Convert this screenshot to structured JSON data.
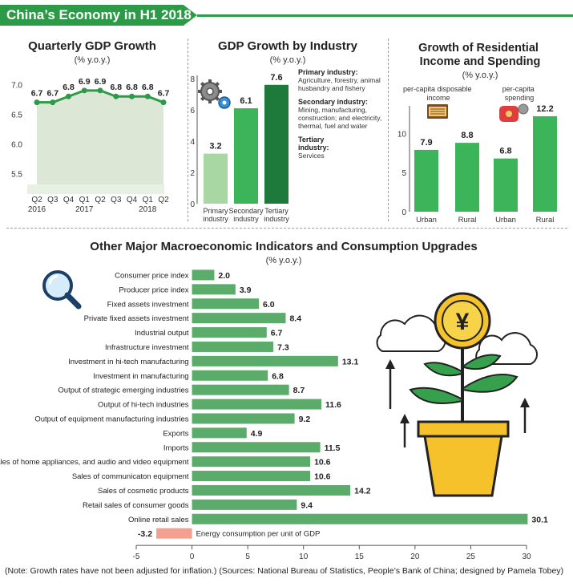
{
  "banner": {
    "title": "China’s Economy in H1 2018"
  },
  "note": {
    "text": "(Note: Growth rates have not been adjusted for inflation.)  (Sources: National Bureau of Statistics, People’s Bank of China; designed by Pamela Tobey)"
  },
  "colors": {
    "green": "#2c9a47",
    "light_green": "#a9d7a4",
    "mid_green": "#3cb55a",
    "dark_green": "#1e7a3a",
    "area_fill": "#dde7d6",
    "bar_green": "#5bab6a",
    "energy_bar": "#f4a08e"
  },
  "icons": {
    "gears": "gears-icon",
    "magnifier": "magnifier-icon",
    "cash": "cash-icon",
    "wallet": "wallet-icon",
    "plant": "money-plant-icon"
  },
  "chart_data": [
    {
      "type": "line",
      "title": "Quarterly GDP Growth",
      "subtitle": "(% y.o.y.)",
      "categories": [
        "Q2",
        "Q3",
        "Q4",
        "Q1",
        "Q2",
        "Q3",
        "Q4",
        "Q1",
        "Q2"
      ],
      "year_labels": [
        "2016",
        "2017",
        "2018"
      ],
      "values": [
        6.7,
        6.7,
        6.8,
        6.9,
        6.9,
        6.8,
        6.8,
        6.8,
        6.7
      ],
      "yticks": [
        "5.5",
        "6.0",
        "6.5",
        "7.0"
      ],
      "ylim": [
        5.4,
        7.1
      ]
    },
    {
      "type": "bar",
      "title": "GDP Growth by Industry",
      "subtitle": "(% y.o.y.)",
      "categories": [
        "Primary industry",
        "Secondary industry",
        "Tertiary industry"
      ],
      "values": [
        3.2,
        6.1,
        7.6
      ],
      "yticks": [
        "0",
        "2",
        "4",
        "6",
        "8"
      ],
      "ylim": [
        0,
        8
      ],
      "legend": [
        {
          "name": "Primary industry:",
          "desc": "Agriculture, forestry, animal husbandry and fishery"
        },
        {
          "name": "Secondary industry:",
          "desc": "Mining, manufacturing, construction; and electricity, thermal, fuel and water"
        },
        {
          "name": "Tertiary industry:",
          "desc": "Services"
        }
      ]
    },
    {
      "type": "bar",
      "title": "Growth of Residential Income and Spending",
      "subtitle": "(% y.o.y.)",
      "groups": [
        "per-capita disposable income",
        "per-capita spending"
      ],
      "categories": [
        "Urban",
        "Rural",
        "Urban",
        "Rural"
      ],
      "values": [
        7.9,
        8.8,
        6.8,
        12.2
      ],
      "yticks": [
        "0",
        "5",
        "10"
      ],
      "ylim": [
        0,
        12.5
      ]
    },
    {
      "type": "bar",
      "orientation": "horizontal",
      "title": "Other Major Macroeconomic Indicators and Consumption Upgrades",
      "subtitle": "(% y.o.y.)",
      "categories": [
        "Consumer price index",
        "Producer price index",
        "Fixed assets investment",
        "Private fixed assets investment",
        "Industrial output",
        "Infrastructure investment",
        "Investment in hi-tech manufacturing",
        "Investment in manufacturing",
        "Output of strategic emerging industries",
        "Output of hi-tech industries",
        "Output of equipment manufacturing industries",
        "Exports",
        "Imports",
        "Sales of home appliances, and audio and video equipment",
        "Sales of communicaton equipment",
        "Sales of cosmetic products",
        "Retail sales of consumer goods",
        "Online retail sales",
        "Energy consumption per unit of GDP"
      ],
      "values": [
        2.0,
        3.9,
        6.0,
        8.4,
        6.7,
        7.3,
        13.1,
        6.8,
        8.7,
        11.6,
        9.2,
        4.9,
        11.5,
        10.6,
        10.6,
        14.2,
        9.4,
        30.1,
        -3.2
      ],
      "value_labels": [
        "2.0",
        "3.9",
        "6.0",
        "8.4",
        "6.7",
        "7.3",
        "13.1",
        "6.8",
        "8.7",
        "11.6",
        "9.2",
        "4.9",
        "11.5",
        "10.6",
        "10.6",
        "14.2",
        "9.4",
        "30.1",
        "-3.2"
      ],
      "xticks": [
        "-5",
        "0",
        "5",
        "10",
        "15",
        "20",
        "25",
        "30"
      ],
      "xlim": [
        -5,
        30
      ]
    }
  ]
}
